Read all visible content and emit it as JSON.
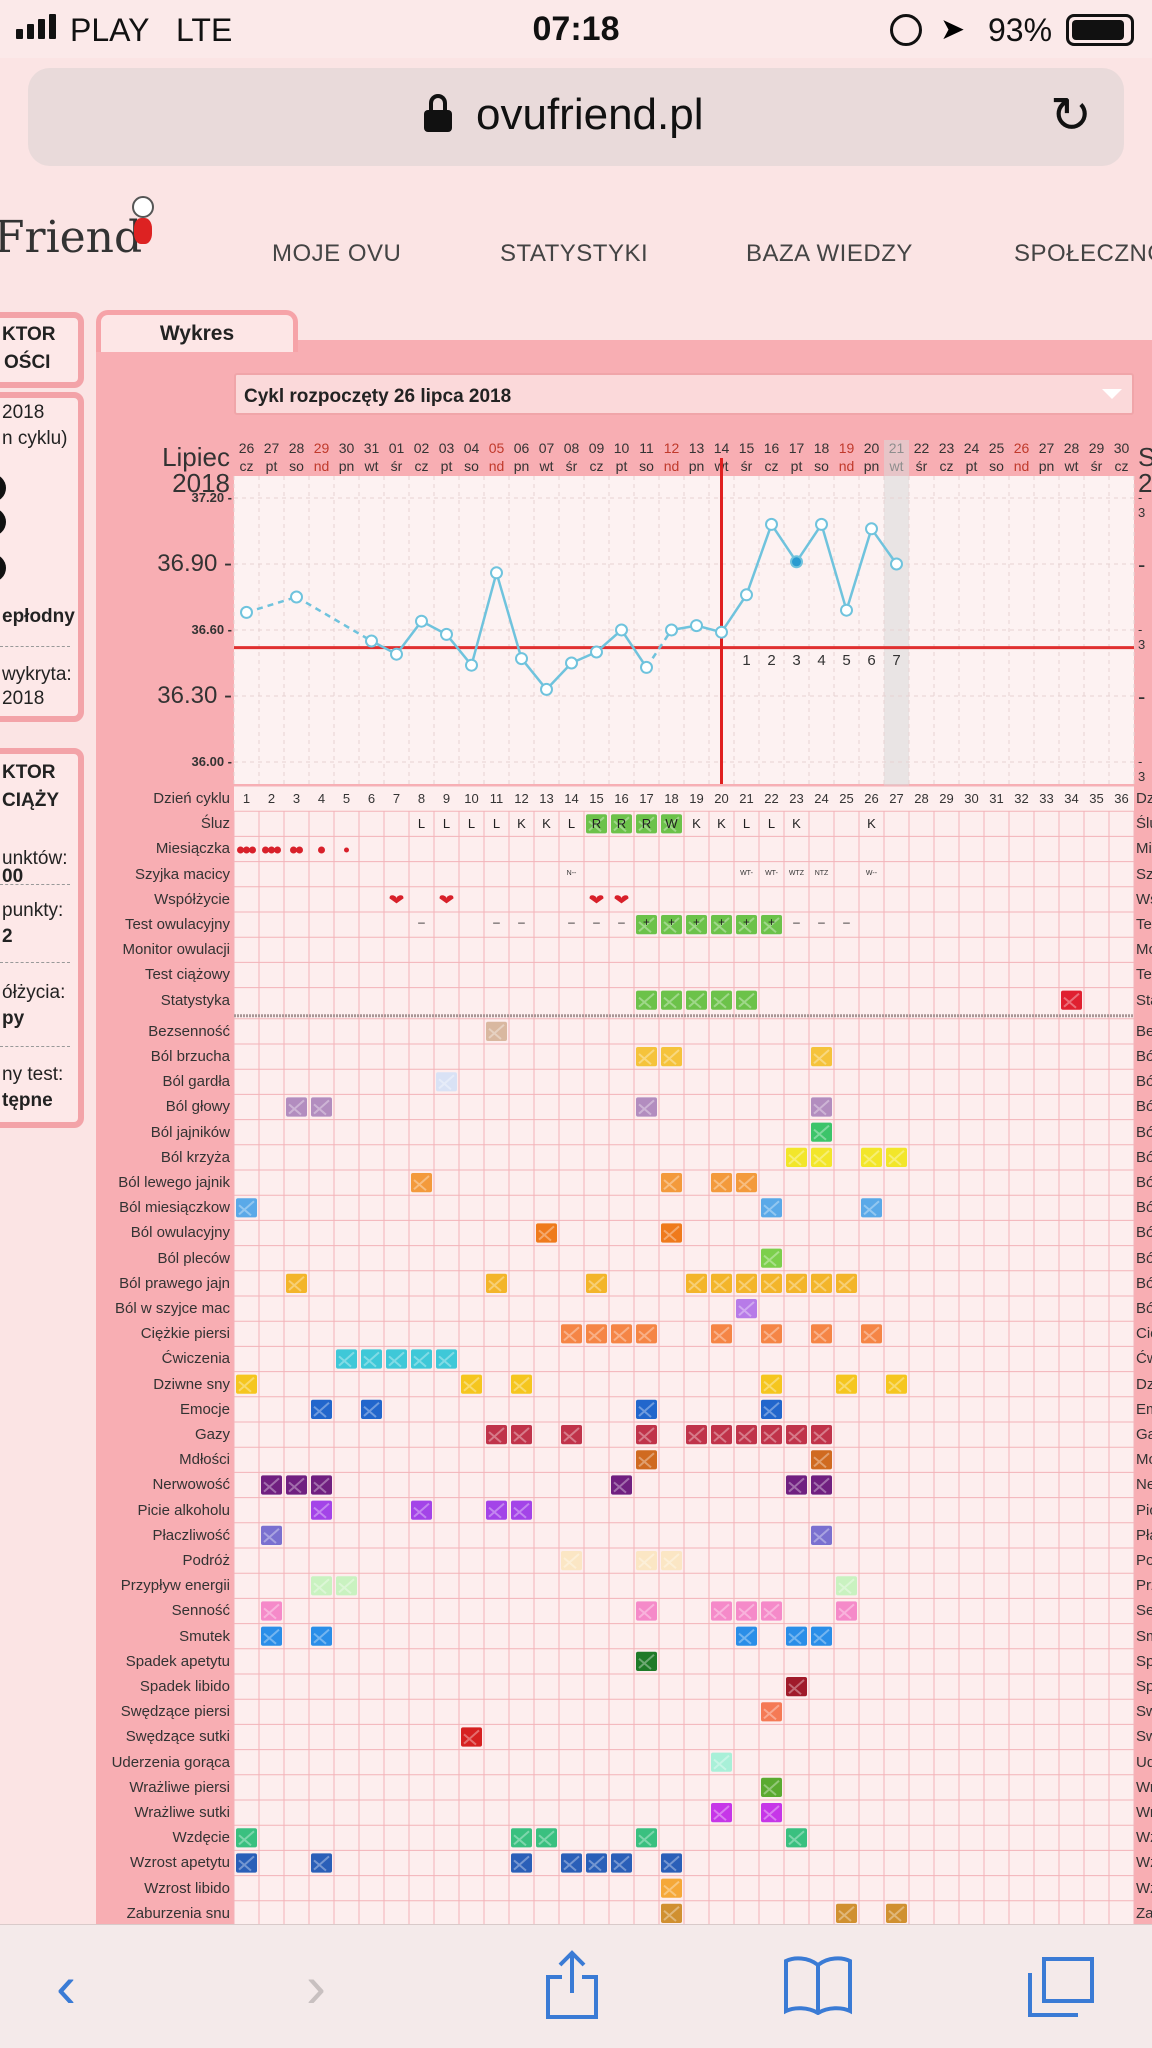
{
  "status_bar": {
    "carrier": "PLAY",
    "network": "LTE",
    "time": "07:18",
    "battery": "93%"
  },
  "browser": {
    "url": "ovufriend.pl"
  },
  "site": {
    "logo_text": "Friend",
    "nav": [
      "MOJE OVU",
      "STATYSTYKI",
      "BAZA WIEDZY",
      "SPOŁECZNO"
    ]
  },
  "sidebar": {
    "lines_top": [
      "KTOR",
      "OŚCI",
      "2018",
      "n cyklu)",
      "epłodny",
      "wykryta:",
      "2018"
    ],
    "lines_bottom": [
      "KTOR",
      "CIĄŻY",
      "unktów:",
      "00",
      "punkty:",
      "2",
      "ółżycia:",
      "py",
      "ny test:",
      "tępne"
    ]
  },
  "tab": {
    "label": "Wykres"
  },
  "cycle_select": {
    "label": "Cykl rozpoczęty 26 lipca 2018"
  },
  "calendar": {
    "month_label_1": "Lipiec",
    "year_label": "2018",
    "right_stub": "S",
    "right_stub_year": "2",
    "days": [
      "26",
      "27",
      "28",
      "29",
      "30",
      "31",
      "01",
      "02",
      "03",
      "04",
      "05",
      "06",
      "07",
      "08",
      "09",
      "10",
      "11",
      "12",
      "13",
      "14",
      "15",
      "16",
      "17",
      "18",
      "19",
      "20",
      "21",
      "22",
      "23",
      "24",
      "25",
      "26",
      "27",
      "28",
      "29",
      "30"
    ],
    "weekdays": [
      "cz",
      "pt",
      "so",
      "nd",
      "pn",
      "wt",
      "śr",
      "cz",
      "pt",
      "so",
      "nd",
      "pn",
      "wt",
      "śr",
      "cz",
      "pt",
      "so",
      "nd",
      "pn",
      "wt",
      "śr",
      "cz",
      "pt",
      "so",
      "nd",
      "pn",
      "wt",
      "śr",
      "cz",
      "pt",
      "so",
      "nd",
      "pn",
      "wt",
      "śr",
      "cz"
    ],
    "sunday_color": "#c0392b",
    "today_index": 26
  },
  "chart_data": {
    "type": "line",
    "title": "",
    "ylim": [
      35.9,
      37.3
    ],
    "y_ticks": [
      "37.20 -",
      "36.90 -",
      "36.60 -",
      "36.30 -",
      "36.00 -"
    ],
    "y_ticks_right": [
      "- 3",
      "-",
      "- 3",
      "-",
      "- 3"
    ],
    "cover_line": 36.52,
    "ovulation_day_index": 19,
    "post_ovulation_labels": [
      "1",
      "2",
      "3",
      "4",
      "5",
      "6",
      "7"
    ],
    "x": [
      1,
      2,
      3,
      4,
      5,
      6,
      7,
      8,
      9,
      10,
      11,
      12,
      13,
      14,
      15,
      16,
      17,
      18,
      19,
      20,
      21,
      22,
      23,
      24,
      25,
      26,
      27
    ],
    "series": [
      {
        "values": [
          36.68,
          null,
          36.75,
          null,
          null,
          36.55,
          36.49,
          36.64,
          36.58,
          36.44,
          36.86,
          36.47,
          36.33,
          36.45,
          36.5,
          36.6,
          36.43,
          36.6,
          36.62,
          36.59,
          36.76,
          37.08,
          36.91,
          37.08,
          36.69,
          37.06,
          36.9
        ]
      }
    ],
    "dashed_segments": [
      [
        1,
        3
      ],
      [
        3,
        6
      ],
      [
        17,
        18
      ]
    ],
    "filled_point_index": 22,
    "line_color": "#6fc3dd"
  },
  "rows_top": [
    "Dzień cyklu",
    "Śluz",
    "Miesiączka",
    "Szyjka macicy",
    "Współżycie",
    "Test owulacyjny",
    "Monitor owulacji",
    "Test ciążowy",
    "Statystyka"
  ],
  "rows_top_right": [
    "Dz",
    "Ślu",
    "Mi",
    "Sz",
    "Ws",
    "Te",
    "Mo",
    "Te",
    "Sta"
  ],
  "cycle_days": [
    "1",
    "2",
    "3",
    "4",
    "5",
    "6",
    "7",
    "8",
    "9",
    "10",
    "11",
    "12",
    "13",
    "14",
    "15",
    "16",
    "17",
    "18",
    "19",
    "20",
    "21",
    "22",
    "23",
    "24",
    "25",
    "26",
    "27",
    "28",
    "29",
    "30",
    "31",
    "32",
    "33",
    "34",
    "35",
    "36"
  ],
  "sluz": {
    "8": "L",
    "9": "L",
    "10": "L",
    "11": "L",
    "12": "K",
    "13": "K",
    "14": "L",
    "15": "R",
    "16": "R",
    "17": "R",
    "18": "W",
    "19": "K",
    "20": "K",
    "21": "L",
    "22": "L",
    "23": "K",
    "26": "K"
  },
  "szyjka": {
    "14": "N--",
    "21": "WT-",
    "22": "WT-",
    "23": "WTZ",
    "24": "NTZ",
    "26": "W--"
  },
  "test_owul": {
    "8": "–",
    "11": "–",
    "12": "–",
    "14": "–",
    "15": "–",
    "16": "–",
    "17": "+",
    "18": "+",
    "19": "+",
    "20": "+",
    "21": "+",
    "22": "+",
    "23": "–",
    "24": "–",
    "25": "–"
  },
  "symptoms": [
    {
      "name": "Bezsenność",
      "right": "Be",
      "cells": [
        11
      ],
      "color": "#d9b8a0"
    },
    {
      "name": "Ból brzucha",
      "right": "Bó",
      "cells": [
        17,
        18,
        24
      ],
      "color": "#f5c33b"
    },
    {
      "name": "Ból gardła",
      "right": "Bó",
      "cells": [
        9
      ],
      "color": "#d9e2f5"
    },
    {
      "name": "Ból głowy",
      "right": "Bó",
      "cells": [
        3,
        4,
        17,
        24
      ],
      "color": "#b28dbf"
    },
    {
      "name": "Ból jajników",
      "right": "Bó",
      "cells": [
        24
      ],
      "color": "#3cc46a"
    },
    {
      "name": "Ból krzyża",
      "right": "Bó",
      "cells": [
        23,
        24,
        26,
        27
      ],
      "color": "#f2e62a"
    },
    {
      "name": "Ból lewego jajnik",
      "right": "Bó",
      "cells": [
        8,
        18,
        20,
        21
      ],
      "color": "#f39a3c"
    },
    {
      "name": "Ból miesiączkow",
      "right": "Bó",
      "cells": [
        1,
        22,
        26
      ],
      "color": "#5aa9e8"
    },
    {
      "name": "Ból owulacyjny",
      "right": "Bó",
      "cells": [
        13,
        18
      ],
      "color": "#ef7a1c"
    },
    {
      "name": "Ból pleców",
      "right": "Bó",
      "cells": [
        22
      ],
      "color": "#7ccf4c"
    },
    {
      "name": "Ból prawego jajn",
      "right": "Bó",
      "cells": [
        3,
        11,
        15,
        19,
        20,
        21,
        22,
        23,
        24,
        25
      ],
      "color": "#f3b52a"
    },
    {
      "name": "Ból w szyjce mac",
      "right": "Bó",
      "cells": [
        21
      ],
      "color": "#b77be8"
    },
    {
      "name": "Ciężkie piersi",
      "right": "Cię",
      "cells": [
        14,
        15,
        16,
        17,
        20,
        22,
        24,
        26
      ],
      "color": "#f58545"
    },
    {
      "name": "Ćwiczenia",
      "right": "Ćw",
      "cells": [
        5,
        6,
        7,
        8,
        9
      ],
      "color": "#3ec8d8"
    },
    {
      "name": "Dziwne sny",
      "right": "Dz",
      "cells": [
        1,
        10,
        12,
        22,
        25,
        27
      ],
      "color": "#f5c61f"
    },
    {
      "name": "Emocje",
      "right": "Em",
      "cells": [
        4,
        6,
        17,
        22
      ],
      "color": "#2266cc"
    },
    {
      "name": "Gazy",
      "right": "Ga",
      "cells": [
        11,
        12,
        14,
        17,
        19,
        20,
        21,
        22,
        23,
        24
      ],
      "color": "#c0334a"
    },
    {
      "name": "Mdłości",
      "right": "Mo",
      "cells": [
        17,
        24
      ],
      "color": "#d06a20"
    },
    {
      "name": "Nerwowość",
      "right": "Ne",
      "cells": [
        2,
        3,
        4,
        16,
        23,
        24
      ],
      "color": "#702080"
    },
    {
      "name": "Picie alkoholu",
      "right": "Pic",
      "cells": [
        4,
        8,
        11,
        12
      ],
      "color": "#a344e8"
    },
    {
      "name": "Płaczliwość",
      "right": "Pła",
      "cells": [
        2,
        24
      ],
      "color": "#7a70d0"
    },
    {
      "name": "Podróż",
      "right": "Po",
      "cells": [
        14,
        17,
        18
      ],
      "color": "#fbe6c4"
    },
    {
      "name": "Przypływ energii",
      "right": "Prz",
      "cells": [
        4,
        5,
        25
      ],
      "color": "#c9f2c0"
    },
    {
      "name": "Senność",
      "right": "Se",
      "cells": [
        2,
        17,
        20,
        21,
        22,
        25
      ],
      "color": "#f58ac9"
    },
    {
      "name": "Smutek",
      "right": "Sm",
      "cells": [
        2,
        4,
        21,
        23,
        24
      ],
      "color": "#2a8ee8"
    },
    {
      "name": "Spadek apetytu",
      "right": "Sp",
      "cells": [
        17
      ],
      "color": "#1f7a28"
    },
    {
      "name": "Spadek libido",
      "right": "Sp",
      "cells": [
        23
      ],
      "color": "#a01a2a"
    },
    {
      "name": "Swędzące piersi",
      "right": "Sw",
      "cells": [
        22
      ],
      "color": "#f57a55"
    },
    {
      "name": "Swędzące sutki",
      "right": "Sw",
      "cells": [
        10
      ],
      "color": "#d62020"
    },
    {
      "name": "Uderzenia gorąca",
      "right": "Ud",
      "cells": [
        20
      ],
      "color": "#a8f0d8"
    },
    {
      "name": "Wrażliwe piersi",
      "right": "Wr",
      "cells": [
        22
      ],
      "color": "#5aaa30"
    },
    {
      "name": "Wrażliwe sutki",
      "right": "Wr",
      "cells": [
        20,
        22
      ],
      "color": "#c636e8"
    },
    {
      "name": "Wzdęcie",
      "right": "Wz",
      "cells": [
        1,
        12,
        13,
        17,
        23
      ],
      "color": "#3ac080"
    },
    {
      "name": "Wzrost apetytu",
      "right": "Wz",
      "cells": [
        1,
        4,
        12,
        14,
        15,
        16,
        18
      ],
      "color": "#2a5fb8"
    },
    {
      "name": "Wzrost libido",
      "right": "Wz",
      "cells": [
        18
      ],
      "color": "#f5a838"
    },
    {
      "name": "Zaburzenia snu",
      "right": "Za",
      "cells": [
        18,
        25,
        27
      ],
      "color": "#d09030"
    }
  ],
  "colors": {
    "panel": "#f8aeb3",
    "grid_line": "#f3b3b8",
    "cover_line": "#e03030",
    "ovulation_line": "#e02020",
    "today_column": "#d8d8d8",
    "menstruation": "#d8202a",
    "intercourse": "#d8202a",
    "green": "#6cc24a",
    "statystyka_marker_red": "#e02030"
  },
  "statystyka": {
    "cells": [
      17,
      18,
      19,
      20,
      21
    ],
    "red_cell": 34
  },
  "menstruation": {
    "1": 3,
    "2": 3,
    "3": 2,
    "4": 1,
    "5": 1
  },
  "wspolzycie": [
    7,
    9,
    15,
    16
  ],
  "icons": [
    "back-icon",
    "forward-icon",
    "share-icon",
    "bookmarks-icon",
    "tabs-icon"
  ]
}
